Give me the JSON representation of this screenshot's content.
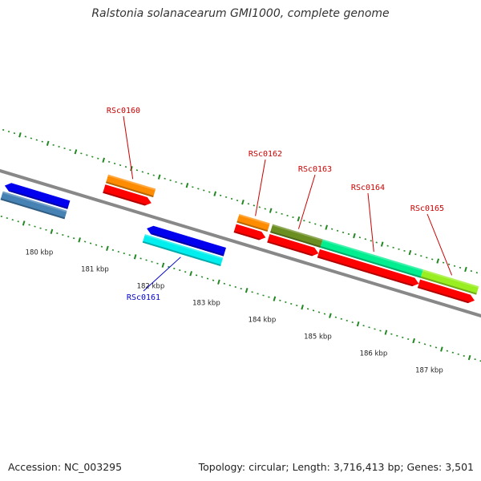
{
  "title": "Ralstonia solanacearum GMI1000, complete genome",
  "footer": {
    "accession": "Accession: NC_003295",
    "topology": "Topology: circular; Length: 3,716,413 bp; Genes: 3,501"
  },
  "map_data": {
    "type": "genome-map",
    "view_start_kbp": 179.4,
    "view_end_kbp": 187.4,
    "kbp_ticks": [
      {
        "kbp": 180,
        "label": "180 kbp"
      },
      {
        "kbp": 181,
        "label": "181 kbp"
      },
      {
        "kbp": 182,
        "label": "182 kbp"
      },
      {
        "kbp": 183,
        "label": "183 kbp"
      },
      {
        "kbp": 184,
        "label": "184 kbp"
      },
      {
        "kbp": 185,
        "label": "185 kbp"
      },
      {
        "kbp": 186,
        "label": "186 kbp"
      },
      {
        "kbp": 187,
        "label": "187 kbp"
      }
    ],
    "colors": {
      "forward_label": "#cc0000",
      "reverse_label": "#0000cc",
      "cds": "#ff0000",
      "tick": "#228822",
      "backbone": "#888888"
    },
    "genes": [
      {
        "id": "g0",
        "label": "",
        "strand": "-",
        "start_kbp": 179.0,
        "end_kbp": 180.15,
        "color": "#0000ee",
        "cds": false
      },
      {
        "id": "RSc0160",
        "label": "RSc0160",
        "strand": "+",
        "start_kbp": 180.65,
        "end_kbp": 181.5,
        "color": "#ff8c00",
        "cds": true
      },
      {
        "id": "RSc0161",
        "label": "RSc0161",
        "strand": "-",
        "start_kbp": 181.55,
        "end_kbp": 182.95,
        "color": "#0000ee",
        "cds": false
      },
      {
        "id": "RSc0162",
        "label": "RSc0162",
        "strand": "+",
        "start_kbp": 183.0,
        "end_kbp": 183.55,
        "color": "#ff8c00",
        "cds": true
      },
      {
        "id": "RSc0163",
        "label": "RSc0163",
        "strand": "+",
        "start_kbp": 183.6,
        "end_kbp": 184.5,
        "color": "#6b8e23",
        "cds": true
      },
      {
        "id": "RSc0164",
        "label": "RSc0164",
        "strand": "+",
        "start_kbp": 184.5,
        "end_kbp": 186.3,
        "color": "#00ee90",
        "cds": true
      },
      {
        "id": "RSc0165",
        "label": "RSc0165",
        "strand": "+",
        "start_kbp": 186.3,
        "end_kbp": 187.3,
        "color": "#99ee22",
        "cds": true
      }
    ]
  }
}
